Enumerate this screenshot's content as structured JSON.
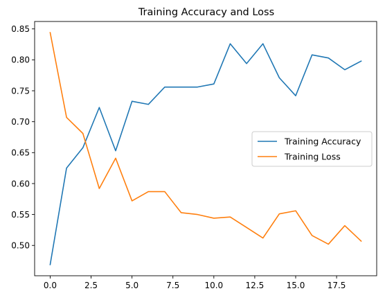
{
  "chart_data": {
    "type": "line",
    "title": "Training Accuracy and Loss",
    "xlabel": "",
    "ylabel": "",
    "x": [
      0,
      1,
      2,
      3,
      4,
      5,
      6,
      7,
      8,
      9,
      10,
      11,
      12,
      13,
      14,
      15,
      16,
      17,
      18,
      19
    ],
    "series": [
      {
        "name": "Training Accuracy",
        "color": "#1f77b4",
        "values": [
          0.469,
          0.625,
          0.658,
          0.723,
          0.653,
          0.733,
          0.728,
          0.756,
          0.756,
          0.756,
          0.761,
          0.826,
          0.794,
          0.826,
          0.771,
          0.742,
          0.808,
          0.803,
          0.784,
          0.798
        ]
      },
      {
        "name": "Training Loss",
        "color": "#ff7f0e",
        "values": [
          0.844,
          0.707,
          0.681,
          0.592,
          0.641,
          0.572,
          0.587,
          0.587,
          0.553,
          0.55,
          0.544,
          0.546,
          0.529,
          0.512,
          0.551,
          0.556,
          0.516,
          0.502,
          0.532,
          0.507
        ]
      }
    ],
    "xlim": [
      -0.95,
      19.95
    ],
    "ylim": [
      0.451,
      0.862
    ],
    "xticks": [
      0.0,
      2.5,
      5.0,
      7.5,
      10.0,
      12.5,
      15.0,
      17.5
    ],
    "xtick_labels": [
      "0.0",
      "2.5",
      "5.0",
      "7.5",
      "10.0",
      "12.5",
      "15.0",
      "17.5"
    ],
    "yticks": [
      0.5,
      0.55,
      0.6,
      0.65,
      0.7,
      0.75,
      0.8,
      0.85
    ],
    "ytick_labels": [
      "0.50",
      "0.55",
      "0.60",
      "0.65",
      "0.70",
      "0.75",
      "0.80",
      "0.85"
    ],
    "grid": false,
    "legend_position": "center-right"
  }
}
